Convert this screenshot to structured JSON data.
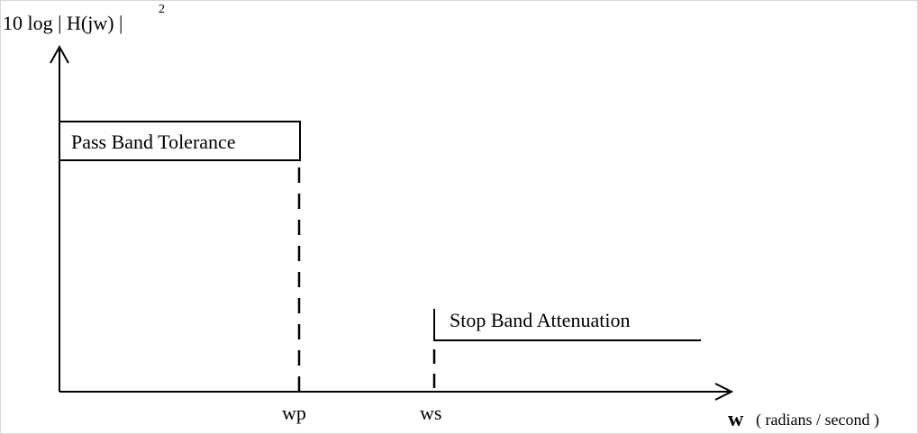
{
  "y_axis": {
    "label_main": "10 log | H(jw) |",
    "label_exponent": "2"
  },
  "x_axis": {
    "label_var": "w",
    "label_unit": "( radians / second )"
  },
  "markers": {
    "wp": "wp",
    "ws": "ws"
  },
  "regions": {
    "pass_band": "Pass Band Tolerance",
    "stop_band": "Stop Band Attenuation"
  }
}
